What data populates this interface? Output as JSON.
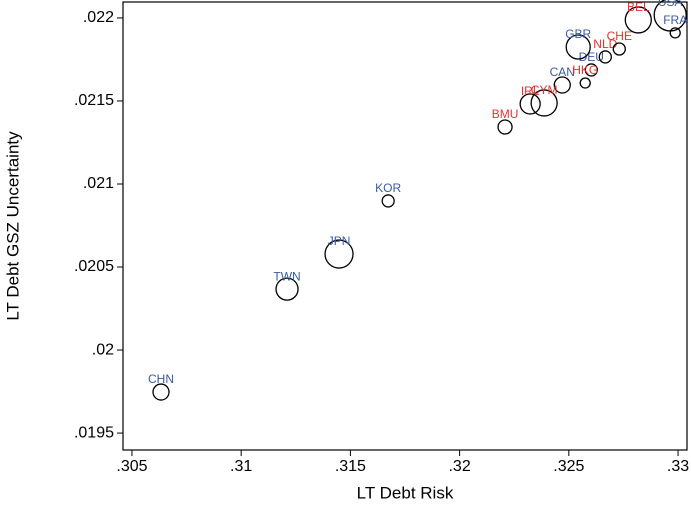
{
  "chart_data": {
    "type": "scatter",
    "x_label": "LT Debt Risk",
    "y_label": "LT Debt GSZ Uncertainty",
    "xlim": [
      0.30459,
      0.33041
    ],
    "ylim": [
      0.019398,
      0.022096
    ],
    "xticks": [
      {
        "value": 0.305,
        "label": ".305"
      },
      {
        "value": 0.31,
        "label": ".31"
      },
      {
        "value": 0.315,
        "label": ".315"
      },
      {
        "value": 0.32,
        "label": ".32"
      },
      {
        "value": 0.325,
        "label": ".325"
      },
      {
        "value": 0.33,
        "label": ".33"
      }
    ],
    "yticks": [
      {
        "value": 0.0195,
        "label": ".0195"
      },
      {
        "value": 0.02,
        "label": ".02"
      },
      {
        "value": 0.0205,
        "label": ".0205"
      },
      {
        "value": 0.021,
        "label": ".021"
      },
      {
        "value": 0.0215,
        "label": ".0215"
      },
      {
        "value": 0.022,
        "label": ".022"
      }
    ],
    "grid": false,
    "series": [
      {
        "color": "#3a5ba8",
        "labels": [
          "CHN",
          "TWN",
          "JPN",
          "KOR",
          "CAN",
          "DEU",
          "GBR",
          "USA",
          "FRA"
        ],
        "x": [
          0.30633,
          0.3121,
          0.31448,
          0.31673,
          0.3247,
          0.32603,
          0.32543,
          0.32964,
          0.32987
        ],
        "values": [
          0.019747,
          0.020367,
          0.020578,
          0.020898,
          0.021596,
          0.021687,
          0.021825,
          0.022018,
          0.02191
        ],
        "sizes": [
          8,
          11,
          14,
          6,
          8,
          6,
          12,
          16,
          5
        ]
      },
      {
        "color": "#e8322c",
        "labels": [
          "BMU",
          "IRL",
          "CYM",
          "HKG",
          "NLD",
          "CHE",
          "BEL"
        ],
        "x": [
          0.32208,
          0.32323,
          0.32387,
          0.32575,
          0.32667,
          0.32731,
          0.32818
        ],
        "values": [
          0.021343,
          0.021482,
          0.021488,
          0.021608,
          0.021765,
          0.021813,
          0.021988
        ],
        "sizes": [
          7,
          10,
          13,
          5,
          6,
          6,
          13
        ]
      }
    ]
  }
}
